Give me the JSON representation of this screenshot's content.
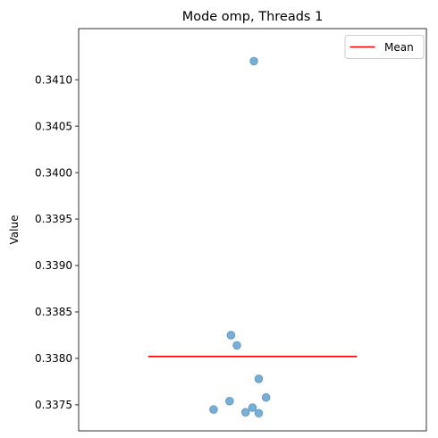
{
  "chart_data": {
    "type": "scatter",
    "title": "Mode omp, Threads 1",
    "xlabel": "",
    "ylabel": "Value",
    "ylim": [
      0.33722,
      0.34155
    ],
    "xlim": [
      -0.5,
      0.5
    ],
    "y_ticks": [
      0.3375,
      0.338,
      0.3385,
      0.339,
      0.3395,
      0.34,
      0.3405,
      0.341
    ],
    "y_tick_labels": [
      "0.3375",
      "0.3380",
      "0.3385",
      "0.3390",
      "0.3395",
      "0.3400",
      "0.3405",
      "0.3410"
    ],
    "x_ticks_visible": false,
    "grid": false,
    "legend_position": "top-right",
    "series": [
      {
        "type": "scatter",
        "color": "#1f77b4",
        "points": [
          {
            "x": 0.004,
            "y": 0.3412
          },
          {
            "x": -0.062,
            "y": 0.33825
          },
          {
            "x": -0.045,
            "y": 0.33814
          },
          {
            "x": 0.018,
            "y": 0.33778
          },
          {
            "x": 0.039,
            "y": 0.33758
          },
          {
            "x": -0.066,
            "y": 0.33754
          },
          {
            "x": 0.0,
            "y": 0.33747
          },
          {
            "x": -0.112,
            "y": 0.33745
          },
          {
            "x": -0.02,
            "y": 0.33742
          },
          {
            "x": 0.018,
            "y": 0.33741
          }
        ]
      },
      {
        "type": "line",
        "name": "Mean",
        "color": "#ff0000",
        "x": [
          -0.3,
          0.3
        ],
        "y": [
          0.33802,
          0.33802
        ]
      }
    ]
  }
}
